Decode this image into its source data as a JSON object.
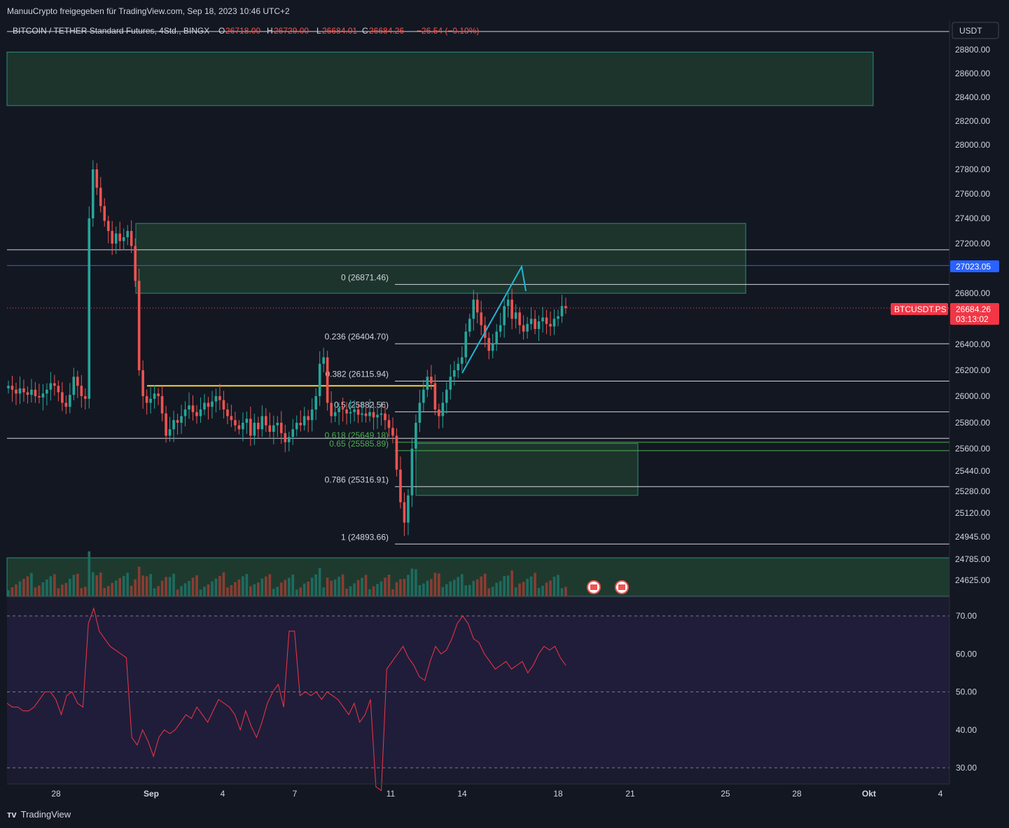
{
  "header": {
    "shared_by": "ManuuCrypto freigegeben für TradingView.com, Sep 18, 2023 10:46 UTC+2"
  },
  "legend": {
    "symbol": "BITCOIN / TETHER Standard Futures, 4Std., BINGX",
    "o_label": "O",
    "o": "26718.00",
    "h_label": "H",
    "h": "26729.00",
    "l_label": "L",
    "l": "26684.01",
    "c_label": "C",
    "c": "26684.26",
    "change": "−26.54 (−0.10%)"
  },
  "currency_button": "USDT",
  "footer": {
    "brand": "TradingView"
  },
  "colors": {
    "background": "#131722",
    "up": "#26a69a",
    "down": "#ef5350",
    "zone_fill": "#1e3a2e",
    "zone_border": "#2a8f7a",
    "rsi": "#f23645",
    "fib_line": "#d1d4dc",
    "range_line": "#2962ff",
    "hline_yellow": "#f7d533",
    "trend": "#22b5d4"
  },
  "chart_data": {
    "type": "candlestick",
    "symbol_label": "BTCUSDT.PS",
    "price_axis": {
      "ylim": [
        24600,
        28900
      ],
      "ticks": [
        "28800.00",
        "28600.00",
        "28400.00",
        "28200.00",
        "28000.00",
        "27800.00",
        "27600.00",
        "27400.00",
        "27200.00",
        "26800.00",
        "26400.00",
        "26200.00",
        "26000.00",
        "25800.00",
        "25600.00",
        "25440.00",
        "25280.00",
        "25120.00",
        "24945.00",
        "24785.00",
        "24625.00"
      ]
    },
    "time_axis": {
      "ticks": [
        "28",
        "Sep",
        "4",
        "7",
        "11",
        "14",
        "18",
        "21",
        "25",
        "28",
        "Okt",
        "4"
      ]
    },
    "current_price": {
      "value": "26684.26",
      "countdown": "03:13:02"
    },
    "marked_price": {
      "value": "27023.05"
    },
    "fibonacci": [
      {
        "level": "0",
        "price": 26871.46,
        "label": "0 (26871.46)"
      },
      {
        "level": "0.236",
        "price": 26404.7,
        "label": "0.236 (26404.70)"
      },
      {
        "level": "0.382",
        "price": 26115.94,
        "label": "0.382 (26115.94)"
      },
      {
        "level": "0.5",
        "price": 25882.56,
        "label": "0.5 (25882.56)"
      },
      {
        "level": "0.618",
        "price": 25649.18,
        "label": "0.618 (25649.18)"
      },
      {
        "level": "0.65",
        "price": 25585.89,
        "label": "0.65 (25585.89)"
      },
      {
        "level": "0.786",
        "price": 25316.91,
        "label": "0.786 (25316.91)"
      },
      {
        "level": "1",
        "price": 24893.66,
        "label": "1 (24893.66)"
      }
    ],
    "horizontal_lines": [
      27150,
      25680
    ],
    "zones": [
      {
        "from": 28330,
        "to": 28780
      },
      {
        "from": 26800,
        "to": 27360
      },
      {
        "from": 25250,
        "to": 25640
      }
    ],
    "key_level": 26080,
    "candles_close": [
      26080,
      26050,
      26020,
      26060,
      26030,
      26010,
      26050,
      26000,
      25990,
      26020,
      26050,
      26100,
      26080,
      26030,
      25950,
      25920,
      26010,
      26150,
      26080,
      26000,
      25980,
      27400,
      27800,
      27650,
      27500,
      27380,
      27300,
      27200,
      27280,
      27220,
      27250,
      27300,
      27180,
      26900,
      26200,
      26000,
      25950,
      25980,
      26020,
      26000,
      25870,
      25700,
      25750,
      25820,
      25800,
      25850,
      25900,
      25930,
      25880,
      25850,
      25900,
      25950,
      25920,
      25960,
      26000,
      25970,
      25900,
      25850,
      25820,
      25780,
      25750,
      25800,
      25830,
      25700,
      25800,
      25750,
      25850,
      25780,
      25730,
      25780,
      25800,
      25720,
      25650,
      25690,
      25750,
      25800,
      25780,
      25850,
      25820,
      25900,
      26000,
      26250,
      26300,
      25950,
      25850,
      25880,
      25910,
      25900,
      25870,
      25880,
      25900,
      25860,
      25870,
      25850,
      25880,
      25840,
      25860,
      25870,
      25820,
      25760,
      25700,
      25450,
      25200,
      25050,
      25250,
      25600,
      25800,
      25950,
      26050,
      26150,
      26100,
      25900,
      25850,
      25950,
      26050,
      26150,
      26200,
      26250,
      26300,
      26500,
      26600,
      26750,
      26650,
      26550,
      26450,
      26350,
      26400,
      26500,
      26550,
      26700,
      26750,
      26600,
      26650,
      26550,
      26500,
      26560,
      26600,
      26520,
      26580,
      26610,
      26560,
      26540,
      26600,
      26620,
      26700,
      26684
    ],
    "volume_max_label": "",
    "rsi": {
      "levels": [
        70,
        50,
        30
      ],
      "ticks": [
        "70.00",
        "60.00",
        "50.00",
        "40.00",
        "30.00"
      ],
      "values": [
        47,
        46,
        46,
        45,
        45,
        46,
        48,
        50,
        50,
        48,
        44,
        49,
        50,
        47,
        46,
        68,
        72,
        66,
        64,
        62,
        61,
        60,
        59,
        38,
        36,
        40,
        37,
        33,
        38,
        40,
        39,
        40,
        42,
        44,
        43,
        46,
        44,
        42,
        45,
        48,
        47,
        46,
        44,
        40,
        45,
        41,
        38,
        42,
        47,
        50,
        52,
        46,
        66,
        66,
        49,
        50,
        49,
        50,
        48,
        50,
        49,
        48,
        46,
        44,
        47,
        42,
        44,
        48,
        25,
        24,
        56,
        58,
        60,
        62,
        59,
        57,
        54,
        53,
        58,
        62,
        60,
        61,
        64,
        68,
        70,
        68,
        64,
        63,
        60,
        58,
        56,
        57,
        58,
        56,
        57,
        58,
        55,
        57,
        60,
        62,
        61,
        62,
        59,
        57
      ]
    }
  }
}
